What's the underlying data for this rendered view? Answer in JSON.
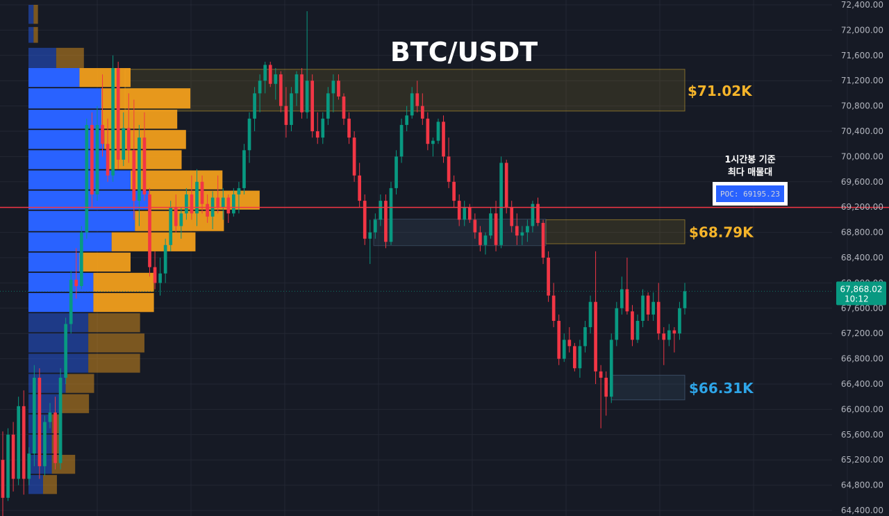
{
  "chart_data": {
    "type": "candlestick",
    "title": "BTC/USDT",
    "y_axis": {
      "ticks": [
        64400,
        64800,
        65200,
        65600,
        66000,
        66400,
        66800,
        67200,
        67600,
        68000,
        68400,
        68800,
        69200,
        69600,
        70000,
        70400,
        70800,
        71200,
        71600,
        72000,
        72400
      ],
      "tick_labels": [
        "64,400.00",
        "64,800.00",
        "65,200.00",
        "65,600.00",
        "66,000.00",
        "66,400.00",
        "66,800.00",
        "67,200.00",
        "67,600.00",
        "68,000.00",
        "68,400.00",
        "68,800.00",
        "69,200.00",
        "69,600.00",
        "70,000.00",
        "70,400.00",
        "70,800.00",
        "71,200.00",
        "71,600.00",
        "72,000.00",
        "72,400.00"
      ],
      "range": [
        64400,
        72450
      ],
      "position": "right"
    },
    "grid": true,
    "current_price": {
      "value": 67868.02,
      "label": "67,868.02",
      "countdown": "10:12",
      "color": "#089981"
    },
    "poc": {
      "value": 69195.23,
      "label": "POC: 69195.23",
      "line_color": "#f23645",
      "annotation_lines": [
        "1시간봉 기준",
        "최다 매물대"
      ]
    },
    "zones": [
      {
        "name": "resistance-zone",
        "low": 70720,
        "high": 71380,
        "label": "$71.02K",
        "label_color": "#f5b42a",
        "color": "#f5b42a"
      },
      {
        "name": "mid-zone",
        "low": 68620,
        "high": 69000,
        "label": "$68.79K",
        "label_color": "#f5b42a",
        "color": "#f5b42a"
      },
      {
        "name": "support-zone",
        "low": 66150,
        "high": 66540,
        "label": "$66.31K",
        "label_color": "#2ea5e8",
        "color": "#4a6a8a"
      }
    ],
    "secondary_zone": {
      "low": 68590,
      "high": 69010
    },
    "volume_profile": {
      "bins": [
        {
          "low": 72100,
          "high": 72400,
          "buy": 7,
          "sell": 6,
          "highlight": false
        },
        {
          "low": 71800,
          "high": 72050,
          "buy": 7,
          "sell": 6,
          "highlight": false
        },
        {
          "low": 71400,
          "high": 71720,
          "buy": 38,
          "sell": 38,
          "highlight": false
        },
        {
          "low": 71100,
          "high": 71400,
          "buy": 70,
          "sell": 70,
          "highlight": true
        },
        {
          "low": 70760,
          "high": 71080,
          "buy": 100,
          "sell": 122,
          "highlight": true
        },
        {
          "low": 70440,
          "high": 70740,
          "buy": 100,
          "sell": 104,
          "highlight": true
        },
        {
          "low": 70120,
          "high": 70420,
          "buy": 104,
          "sell": 112,
          "highlight": true
        },
        {
          "low": 69800,
          "high": 70100,
          "buy": 108,
          "sell": 102,
          "highlight": true
        },
        {
          "low": 69480,
          "high": 69780,
          "buy": 140,
          "sell": 126,
          "highlight": true
        },
        {
          "low": 69160,
          "high": 69460,
          "buy": 165,
          "sell": 152,
          "highlight": true
        },
        {
          "low": 68820,
          "high": 69140,
          "buy": 146,
          "sell": 122,
          "highlight": true
        },
        {
          "low": 68500,
          "high": 68800,
          "buy": 114,
          "sell": 115,
          "highlight": true
        },
        {
          "low": 68180,
          "high": 68480,
          "buy": 70,
          "sell": 70,
          "highlight": true
        },
        {
          "low": 67860,
          "high": 68160,
          "buy": 89,
          "sell": 83,
          "highlight": true
        },
        {
          "low": 67540,
          "high": 67840,
          "buy": 89,
          "sell": 83,
          "highlight": true
        },
        {
          "low": 67220,
          "high": 67520,
          "buy": 82,
          "sell": 71,
          "highlight": false
        },
        {
          "low": 66900,
          "high": 67200,
          "buy": 82,
          "sell": 77,
          "highlight": false
        },
        {
          "low": 66580,
          "high": 66880,
          "buy": 82,
          "sell": 71,
          "highlight": false
        },
        {
          "low": 66260,
          "high": 66560,
          "buy": 51,
          "sell": 39,
          "highlight": false
        },
        {
          "low": 65940,
          "high": 66240,
          "buy": 45,
          "sell": 38,
          "highlight": false
        },
        {
          "low": 65620,
          "high": 65920,
          "buy": 32,
          "sell": 14,
          "highlight": false
        },
        {
          "low": 65300,
          "high": 65600,
          "buy": 32,
          "sell": 14,
          "highlight": false
        },
        {
          "low": 64980,
          "high": 65280,
          "buy": 32,
          "sell": 32,
          "highlight": false
        },
        {
          "low": 64660,
          "high": 64960,
          "buy": 20,
          "sell": 19,
          "highlight": false
        }
      ],
      "buy_color": "#2962ff",
      "sell_color": "#f7a21b"
    },
    "candles": [
      [
        65200,
        65650,
        64300,
        64600
      ],
      [
        64600,
        65700,
        64550,
        65600
      ],
      [
        65600,
        65800,
        64700,
        64900
      ],
      [
        64900,
        66200,
        64800,
        66050
      ],
      [
        66050,
        66300,
        64650,
        64900
      ],
      [
        64900,
        65400,
        64800,
        65300
      ],
      [
        65300,
        66700,
        65100,
        66500
      ],
      [
        66500,
        66650,
        64900,
        65100
      ],
      [
        65100,
        65900,
        64950,
        65800
      ],
      [
        65800,
        66100,
        65700,
        65950
      ],
      [
        65950,
        66200,
        65050,
        65150
      ],
      [
        65150,
        66650,
        65050,
        66500
      ],
      [
        66500,
        67450,
        66400,
        67350
      ],
      [
        67350,
        68200,
        67200,
        68050
      ],
      [
        68050,
        68550,
        67750,
        67950
      ],
      [
        67950,
        68900,
        67900,
        68800
      ],
      [
        68800,
        70600,
        68700,
        70500
      ],
      [
        70500,
        70700,
        69200,
        69400
      ],
      [
        69400,
        70800,
        69300,
        70500
      ],
      [
        70500,
        71300,
        70000,
        70200
      ],
      [
        70200,
        70600,
        69600,
        69700
      ],
      [
        69700,
        71600,
        69600,
        71400
      ],
      [
        71400,
        71500,
        69800,
        69950
      ],
      [
        69950,
        70700,
        69850,
        70450
      ],
      [
        70450,
        71000,
        69900,
        70100
      ],
      [
        70100,
        70900,
        69000,
        69300
      ],
      [
        69300,
        70500,
        68900,
        70300
      ],
      [
        70300,
        70700,
        69300,
        69400
      ],
      [
        69400,
        69500,
        68100,
        68250
      ],
      [
        68250,
        68500,
        67900,
        68000
      ],
      [
        68000,
        68400,
        67800,
        68150
      ],
      [
        68150,
        68700,
        68000,
        68600
      ],
      [
        68600,
        69300,
        68500,
        69200
      ],
      [
        69200,
        69400,
        68800,
        68900
      ],
      [
        68900,
        69200,
        68700,
        69100
      ],
      [
        69100,
        69500,
        69000,
        69400
      ],
      [
        69400,
        69700,
        69000,
        69100
      ],
      [
        69100,
        69800,
        68900,
        69600
      ],
      [
        69600,
        69700,
        69100,
        69250
      ],
      [
        69250,
        69400,
        68950,
        69050
      ],
      [
        69050,
        69450,
        68850,
        69350
      ],
      [
        69350,
        69700,
        69100,
        69200
      ],
      [
        69200,
        69500,
        69000,
        69350
      ],
      [
        69350,
        69400,
        68950,
        69100
      ],
      [
        69100,
        69500,
        69050,
        69400
      ],
      [
        69400,
        69600,
        69100,
        69500
      ],
      [
        69500,
        70200,
        69400,
        70100
      ],
      [
        70100,
        70700,
        69900,
        70600
      ],
      [
        70600,
        71100,
        70400,
        71000
      ],
      [
        71000,
        71300,
        70700,
        71200
      ],
      [
        71200,
        71500,
        71000,
        71450
      ],
      [
        71450,
        71500,
        71100,
        71150
      ],
      [
        71150,
        71400,
        70900,
        71300
      ],
      [
        71300,
        71350,
        70700,
        70800
      ],
      [
        70800,
        71100,
        70300,
        70500
      ],
      [
        70500,
        71100,
        70400,
        71000
      ],
      [
        71000,
        71350,
        70800,
        71300
      ],
      [
        71300,
        71400,
        70600,
        70700
      ],
      [
        70700,
        72300,
        70600,
        71200
      ],
      [
        71200,
        71300,
        70300,
        70400
      ],
      [
        70400,
        70700,
        70200,
        70300
      ],
      [
        70300,
        70700,
        70200,
        70600
      ],
      [
        70600,
        71100,
        70500,
        71000
      ],
      [
        71000,
        71300,
        70700,
        71200
      ],
      [
        71200,
        71300,
        70900,
        70950
      ],
      [
        70950,
        71000,
        70500,
        70600
      ],
      [
        70600,
        70700,
        70200,
        70300
      ],
      [
        70300,
        70400,
        69600,
        69700
      ],
      [
        69700,
        69900,
        69200,
        69300
      ],
      [
        69300,
        69400,
        68600,
        68700
      ],
      [
        68700,
        69000,
        68300,
        68800
      ],
      [
        68800,
        69100,
        68700,
        69000
      ],
      [
        69000,
        69400,
        68900,
        69300
      ],
      [
        69300,
        69400,
        68550,
        68650
      ],
      [
        68650,
        69600,
        68600,
        69500
      ],
      [
        69500,
        70100,
        69400,
        70000
      ],
      [
        70000,
        70600,
        69900,
        70500
      ],
      [
        70500,
        70800,
        70400,
        70650
      ],
      [
        70650,
        71100,
        70600,
        71000
      ],
      [
        71000,
        71200,
        70700,
        70800
      ],
      [
        70800,
        71000,
        70500,
        70600
      ],
      [
        70600,
        70700,
        70100,
        70200
      ],
      [
        70200,
        70300,
        70000,
        70250
      ],
      [
        70250,
        70600,
        70200,
        70550
      ],
      [
        70550,
        70650,
        69900,
        70000
      ],
      [
        70000,
        70300,
        69500,
        69600
      ],
      [
        69600,
        69700,
        69200,
        69300
      ],
      [
        69300,
        69400,
        68900,
        69000
      ],
      [
        69000,
        69300,
        68900,
        69200
      ],
      [
        69200,
        69250,
        68950,
        69000
      ],
      [
        69000,
        69100,
        68700,
        68800
      ],
      [
        68800,
        68900,
        68500,
        68600
      ],
      [
        68600,
        68800,
        68450,
        68750
      ],
      [
        68750,
        69200,
        68700,
        69100
      ],
      [
        69100,
        69300,
        68500,
        68600
      ],
      [
        68600,
        70000,
        68550,
        69900
      ],
      [
        69900,
        69950,
        69100,
        69200
      ],
      [
        69200,
        69300,
        68800,
        68900
      ],
      [
        68900,
        69100,
        68600,
        68750
      ],
      [
        68750,
        68900,
        68600,
        68800
      ],
      [
        68800,
        69000,
        68650,
        68900
      ],
      [
        68900,
        69300,
        68800,
        69250
      ],
      [
        69250,
        69350,
        68900,
        68950
      ],
      [
        68950,
        69000,
        68300,
        68400
      ],
      [
        68400,
        68500,
        67700,
        67800
      ],
      [
        67800,
        68000,
        67300,
        67400
      ],
      [
        67400,
        67500,
        66700,
        66800
      ],
      [
        66800,
        67200,
        66750,
        67100
      ],
      [
        67100,
        67300,
        66900,
        67000
      ],
      [
        67000,
        67050,
        66600,
        66650
      ],
      [
        66650,
        67100,
        66500,
        67000
      ],
      [
        67000,
        67400,
        66900,
        67300
      ],
      [
        67300,
        67800,
        67200,
        67700
      ],
      [
        67700,
        68500,
        66400,
        66600
      ],
      [
        66600,
        66700,
        65700,
        66500
      ],
      [
        66500,
        66600,
        65900,
        66200
      ],
      [
        66200,
        67200,
        66100,
        67100
      ],
      [
        67100,
        67700,
        67000,
        67600
      ],
      [
        67600,
        68100,
        67500,
        67900
      ],
      [
        67900,
        68400,
        67500,
        67550
      ],
      [
        67550,
        67650,
        67000,
        67100
      ],
      [
        67100,
        67500,
        67050,
        67400
      ],
      [
        67400,
        67900,
        67300,
        67800
      ],
      [
        67800,
        67850,
        67400,
        67500
      ],
      [
        67500,
        67850,
        67400,
        67700
      ],
      [
        67700,
        68000,
        67100,
        67200
      ],
      [
        67200,
        67300,
        66700,
        67100
      ],
      [
        67100,
        67350,
        67000,
        67250
      ],
      [
        67250,
        67300,
        66900,
        67200
      ],
      [
        67200,
        67700,
        67100,
        67600
      ],
      [
        67600,
        68000,
        67500,
        67868
      ]
    ]
  },
  "colors": {
    "background": "#161a25",
    "grid": "#232733",
    "up": "#089981",
    "down": "#f23645",
    "axis_text": "#b2b5be"
  }
}
